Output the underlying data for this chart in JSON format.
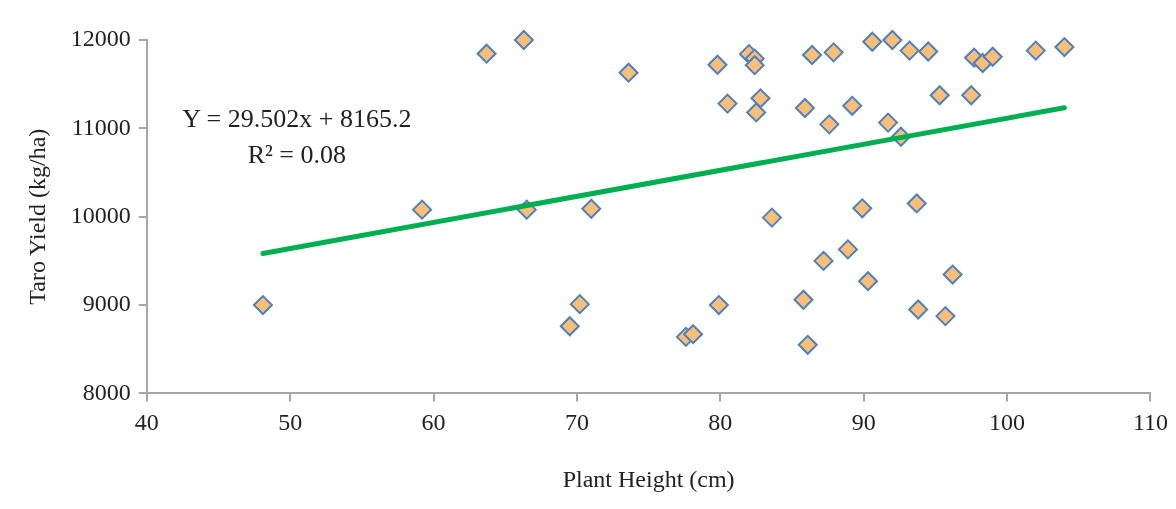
{
  "chart_data": {
    "type": "scatter",
    "xlabel": "Plant Height (cm)",
    "ylabel": "Taro Yield (kg/ha)",
    "xlim": [
      40,
      110
    ],
    "xticks": [
      40,
      50,
      60,
      70,
      80,
      90,
      100,
      110
    ],
    "ylim": [
      8000,
      12000
    ],
    "yticks": [
      8000,
      9000,
      10000,
      11000,
      12000
    ],
    "grid": false,
    "legend": false,
    "annotations": [
      "Y = 29.502x + 8165.2",
      "R² = 0.08"
    ],
    "series": [
      {
        "marker": "diamond",
        "color": "#f9be78",
        "x": [
          63.7,
          66.3,
          73.6,
          59.2,
          66.5,
          71.0,
          48.1,
          70.2,
          69.5,
          79.8,
          82.0,
          82.4,
          82.4,
          86.4,
          87.9,
          90.6,
          92.0,
          93.2,
          94.5,
          97.7,
          98.3,
          99.0,
          102.0,
          104.0,
          80.5,
          82.8,
          82.5,
          85.9,
          89.2,
          87.6,
          91.7,
          92.6,
          95.3,
          97.5,
          83.6,
          89.9,
          93.7,
          88.9,
          87.2,
          90.3,
          96.2,
          79.9,
          85.8,
          93.8,
          95.7,
          77.6,
          78.1,
          86.1
        ],
        "values": [
          11845,
          12000,
          11630,
          10080,
          10080,
          10090,
          9000,
          9010,
          8760,
          11720,
          11840,
          11790,
          11715,
          11830,
          11860,
          11980,
          12000,
          11880,
          11870,
          11800,
          11740,
          11810,
          11880,
          11920,
          11280,
          11340,
          11180,
          11230,
          11255,
          11045,
          11065,
          10905,
          11375,
          11375,
          9990,
          10095,
          10150,
          9630,
          9500,
          9270,
          9345,
          9000,
          9060,
          8950,
          8875,
          8640,
          8670,
          8550
        ]
      },
      {
        "type": "line",
        "marker": "none",
        "color": "#00b050",
        "x": [
          48.1,
          104
        ],
        "values": [
          9584,
          11233
        ]
      }
    ]
  }
}
